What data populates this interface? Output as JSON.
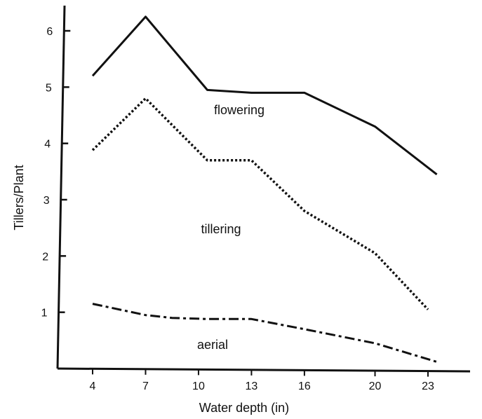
{
  "chart_data": {
    "type": "line",
    "xlabel": "Water depth (in)",
    "ylabel": "Tillers/Plant",
    "x": [
      4,
      7,
      10,
      13,
      16,
      20,
      23
    ],
    "xlim": [
      2.5,
      25
    ],
    "ylim": [
      0,
      6.4
    ],
    "yticks": [
      1,
      2,
      3,
      4,
      5,
      6
    ],
    "grid": false,
    "series": [
      {
        "name": "flowering",
        "style": "solid",
        "color": "#111111",
        "points": [
          {
            "x": 4,
            "y": 5.2
          },
          {
            "x": 7,
            "y": 6.25
          },
          {
            "x": 10.5,
            "y": 4.95
          },
          {
            "x": 13,
            "y": 4.9
          },
          {
            "x": 16,
            "y": 4.9
          },
          {
            "x": 20,
            "y": 4.3
          },
          {
            "x": 23.5,
            "y": 3.45
          }
        ]
      },
      {
        "name": "tillering",
        "style": "dotted",
        "color": "#111111",
        "points": [
          {
            "x": 4,
            "y": 3.88
          },
          {
            "x": 7,
            "y": 4.8
          },
          {
            "x": 10.5,
            "y": 3.7
          },
          {
            "x": 13,
            "y": 3.7
          },
          {
            "x": 16,
            "y": 2.8
          },
          {
            "x": 20,
            "y": 2.05
          },
          {
            "x": 23,
            "y": 1.05
          }
        ]
      },
      {
        "name": "aerial",
        "style": "dashdot",
        "color": "#111111",
        "points": [
          {
            "x": 4,
            "y": 1.15
          },
          {
            "x": 7,
            "y": 0.95
          },
          {
            "x": 8.5,
            "y": 0.9
          },
          {
            "x": 10.5,
            "y": 0.88
          },
          {
            "x": 13,
            "y": 0.88
          },
          {
            "x": 16,
            "y": 0.7
          },
          {
            "x": 20,
            "y": 0.45
          },
          {
            "x": 23.5,
            "y": 0.12
          }
        ]
      }
    ]
  }
}
